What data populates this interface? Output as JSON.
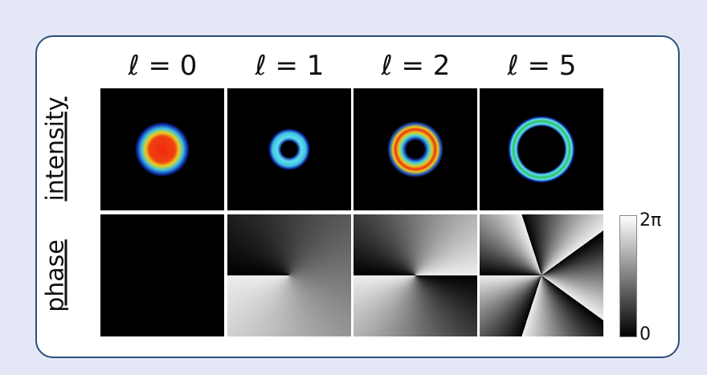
{
  "columns": [
    "ℓ = 0",
    "ℓ = 1",
    "ℓ = 2",
    "ℓ = 5"
  ],
  "rows": [
    "intensity",
    "phase"
  ],
  "colorbar": {
    "max": "2π",
    "min": "0"
  }
}
